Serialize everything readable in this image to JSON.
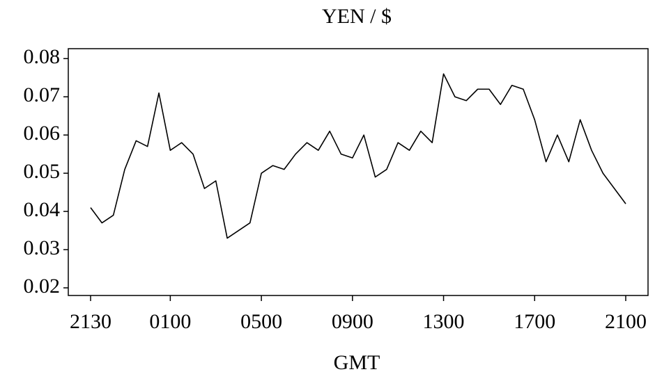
{
  "chart_data": {
    "type": "line",
    "title": "YEN / $",
    "x_label": "GMT",
    "categories": [
      "2130",
      null,
      null,
      null,
      null,
      null,
      null,
      "0100",
      null,
      null,
      null,
      null,
      null,
      null,
      null,
      "0500",
      null,
      null,
      null,
      null,
      null,
      null,
      null,
      "0900",
      null,
      null,
      null,
      null,
      null,
      null,
      null,
      "1300",
      null,
      null,
      null,
      null,
      null,
      null,
      null,
      "1700",
      null,
      null,
      null,
      null,
      null,
      null,
      null,
      "2100"
    ],
    "values": [
      0.041,
      0.037,
      0.039,
      0.051,
      0.0585,
      0.057,
      0.071,
      0.056,
      0.058,
      0.055,
      0.046,
      0.048,
      0.033,
      0.035,
      0.037,
      0.05,
      0.052,
      0.051,
      0.055,
      0.058,
      0.056,
      0.061,
      0.055,
      0.054,
      0.06,
      0.049,
      0.051,
      0.058,
      0.056,
      0.061,
      0.058,
      0.076,
      0.07,
      0.069,
      0.072,
      0.072,
      0.068,
      0.073,
      0.072,
      0.064,
      0.053,
      0.06,
      0.053,
      0.064,
      0.056,
      0.05,
      0.046,
      0.042
    ],
    "color": "#000000",
    "ylim": [
      0.018,
      0.0826
    ],
    "yticks": [
      0.02,
      0.03,
      0.04,
      0.05,
      0.06,
      0.07,
      0.08
    ]
  }
}
